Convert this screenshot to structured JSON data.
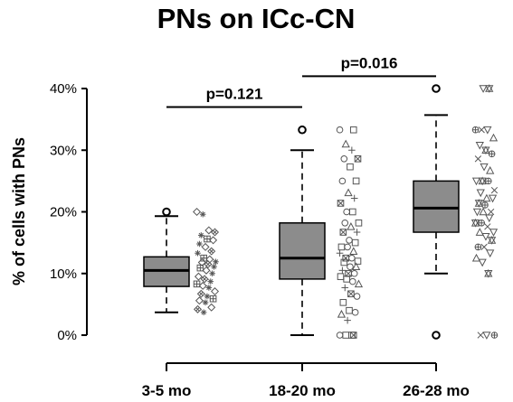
{
  "chart_data": {
    "type": "box",
    "title": "PNs on ICc-CN",
    "xlabel": "",
    "ylabel": "% of cells with PNs",
    "ylim": [
      0,
      40
    ],
    "yticks": [
      "0%",
      "10%",
      "20%",
      "30%",
      "40%"
    ],
    "categories": [
      "3-5 mo",
      "18-20 mo",
      "26-28 mo"
    ],
    "boxes": [
      {
        "category": "3-5 mo",
        "whisker_low": 3.7,
        "q1": 7.9,
        "median": 10.5,
        "q3": 12.7,
        "whisker_high": 19.3,
        "outliers": [
          20.0
        ]
      },
      {
        "category": "18-20 mo",
        "whisker_low": 0.0,
        "q1": 9.1,
        "median": 12.5,
        "q3": 18.2,
        "whisker_high": 30.0,
        "outliers": [
          33.3
        ]
      },
      {
        "category": "26-28 mo",
        "whisker_low": 10.0,
        "q1": 16.7,
        "median": 20.6,
        "q3": 25.0,
        "whisker_high": 35.7,
        "outliers": [
          0.0,
          40.0
        ]
      }
    ],
    "comparisons": [
      {
        "groups": [
          "3-5 mo",
          "18-20 mo"
        ],
        "label": "p=0.121"
      },
      {
        "groups": [
          "18-20 mo",
          "26-28 mo"
        ],
        "label": "p=0.016"
      }
    ],
    "scatter": [
      {
        "category": "3-5 mo",
        "values": [
          20,
          19.6,
          17,
          16.7,
          16.2,
          15.6,
          15.4,
          14.8,
          14.3,
          13.6,
          13.3,
          12.5,
          12.3,
          11.9,
          11.8,
          11.5,
          11.1,
          10.9,
          10.5,
          10.0,
          9.5,
          9.1,
          8.7,
          8.3,
          8.0,
          7.7,
          7.1,
          6.7,
          6.3,
          5.9,
          5.6,
          5.3,
          4.5,
          4.2,
          3.7
        ]
      },
      {
        "category": "18-20 mo",
        "values": [
          33.3,
          33.3,
          31.0,
          30.0,
          28.6,
          28.6,
          27.3,
          25.0,
          25.0,
          23.1,
          22.2,
          21.4,
          20.0,
          20.0,
          18.2,
          18.2,
          17.6,
          16.7,
          16.7,
          15.4,
          15.0,
          14.3,
          14.3,
          13.6,
          13.3,
          12.5,
          12.5,
          12.0,
          11.8,
          11.1,
          11.1,
          10.5,
          10.0,
          10.0,
          9.5,
          9.1,
          8.7,
          8.3,
          7.7,
          6.7,
          6.3,
          5.3,
          4.0,
          3.7,
          3.4,
          2.4,
          0.0,
          0.0,
          0.0,
          0.0
        ]
      },
      {
        "category": "26-28 mo",
        "values": [
          40.0,
          40.0,
          33.3,
          33.3,
          33.3,
          32.0,
          30.8,
          30.0,
          29.4,
          28.6,
          27.3,
          26.7,
          25.0,
          25.0,
          25.0,
          23.5,
          23.1,
          22.2,
          22.2,
          21.4,
          21.1,
          20.0,
          20.0,
          20.0,
          19.0,
          18.2,
          18.2,
          17.6,
          16.7,
          16.7,
          16.0,
          15.4,
          14.3,
          14.3,
          13.3,
          12.5,
          11.8,
          10.0,
          0.0,
          0.0,
          0.0
        ]
      }
    ]
  }
}
